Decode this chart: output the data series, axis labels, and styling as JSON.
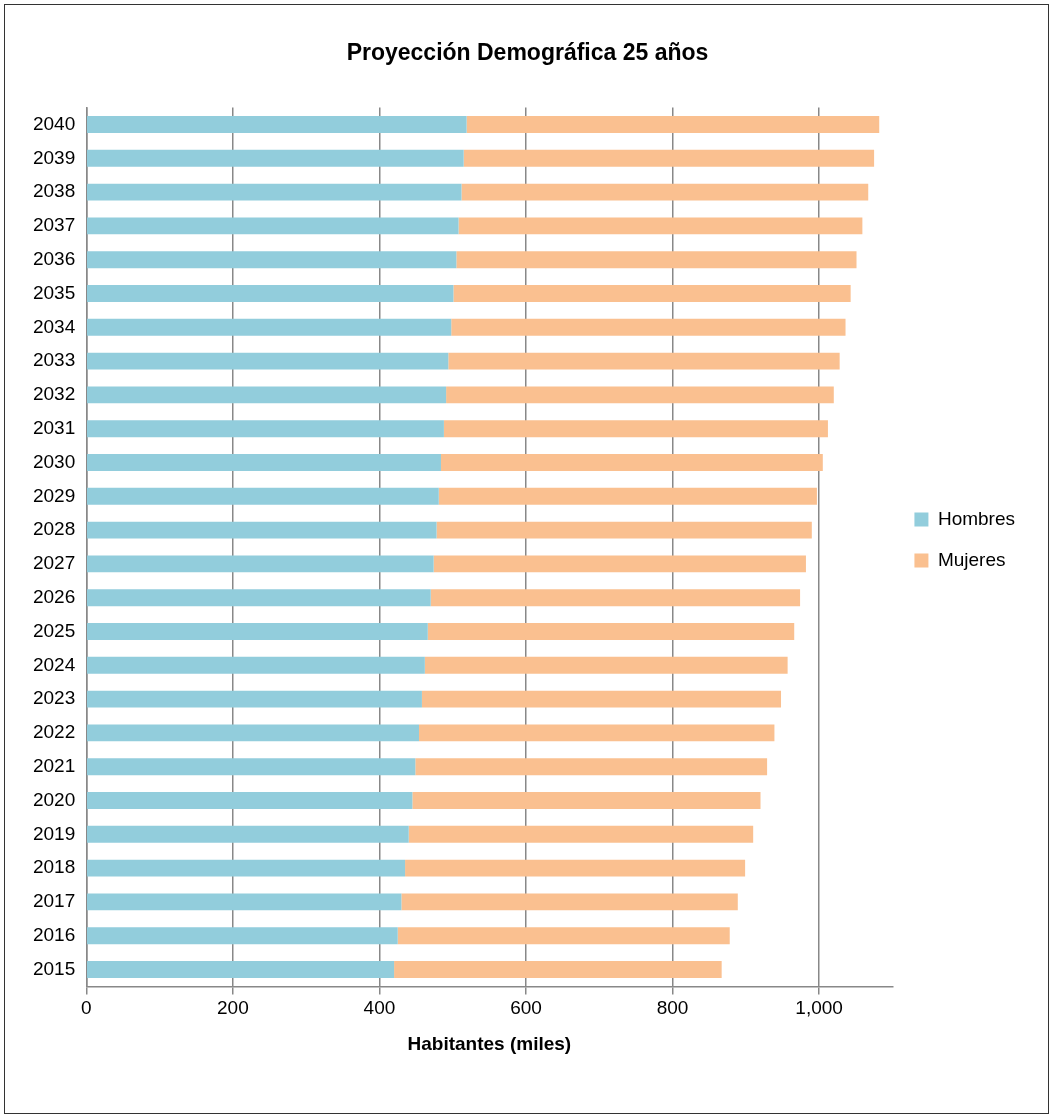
{
  "chart_data": {
    "type": "bar",
    "orientation": "horizontal",
    "stacked": true,
    "title": "Proyección Demográfica 25 años",
    "xlabel": "Habitantes (miles)",
    "categories": [
      "2040",
      "2039",
      "2038",
      "2037",
      "2036",
      "2035",
      "2034",
      "2033",
      "2032",
      "2031",
      "2030",
      "2029",
      "2028",
      "2027",
      "2026",
      "2025",
      "2024",
      "2023",
      "2022",
      "2021",
      "2020",
      "2019",
      "2018",
      "2017",
      "2016",
      "2015"
    ],
    "series": [
      {
        "name": "Hombres",
        "color": "#92cddc",
        "values": [
          519,
          515,
          512,
          508,
          505,
          501,
          498,
          494,
          491,
          488,
          484,
          481,
          478,
          474,
          470,
          466,
          462,
          458,
          454,
          449,
          445,
          440,
          435,
          430,
          425,
          420
        ]
      },
      {
        "name": "Mujeres",
        "color": "#fac090",
        "values": [
          563,
          560,
          555,
          551,
          546,
          542,
          538,
          534,
          529,
          524,
          521,
          516,
          512,
          508,
          504,
          500,
          495,
          490,
          485,
          480,
          475,
          470,
          464,
          459,
          453,
          447
        ]
      }
    ],
    "xlim": [
      0,
      1100
    ],
    "xticks": [
      0,
      200,
      400,
      600,
      800,
      {
        "value": 1000,
        "label": "1,000"
      }
    ],
    "grid": "x",
    "legend": "right"
  }
}
